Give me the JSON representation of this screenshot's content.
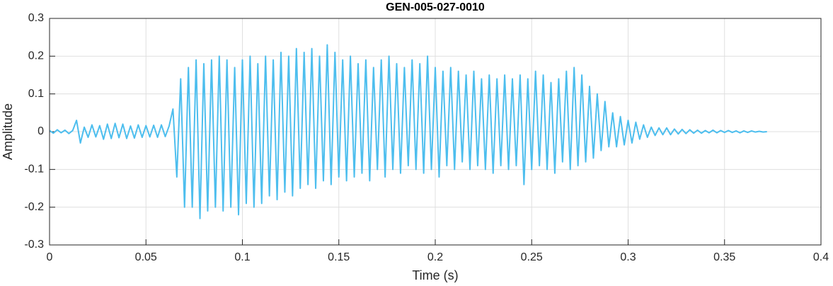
{
  "chart_data": {
    "type": "line",
    "title": "GEN-005-027-0010",
    "x_label": "Time (s)",
    "y_label": "Amplitude",
    "color": "#4dbeee",
    "grid": true,
    "xlim": [
      0,
      0.4
    ],
    "xticks": [
      0,
      0.05,
      0.1,
      0.15,
      0.2,
      0.25,
      0.3,
      0.35,
      0.4
    ],
    "ylim": [
      -0.3,
      0.3
    ],
    "yticks": [
      -0.3,
      -0.2,
      -0.1,
      0,
      0.1,
      0.2,
      0.3
    ],
    "x": [
      0,
      0.002,
      0.004,
      0.006,
      0.008,
      0.01,
      0.012,
      0.014,
      0.016,
      0.018,
      0.02,
      0.022,
      0.024,
      0.026,
      0.028,
      0.03,
      0.032,
      0.034,
      0.036,
      0.038,
      0.04,
      0.042,
      0.044,
      0.046,
      0.048,
      0.05,
      0.052,
      0.054,
      0.056,
      0.058,
      0.06,
      0.062,
      0.064,
      0.066,
      0.068,
      0.07,
      0.072,
      0.074,
      0.076,
      0.078,
      0.08,
      0.082,
      0.084,
      0.086,
      0.088,
      0.09,
      0.092,
      0.094,
      0.096,
      0.098,
      0.1,
      0.102,
      0.104,
      0.106,
      0.108,
      0.11,
      0.112,
      0.114,
      0.116,
      0.118,
      0.12,
      0.122,
      0.124,
      0.126,
      0.128,
      0.13,
      0.132,
      0.134,
      0.136,
      0.138,
      0.14,
      0.142,
      0.144,
      0.146,
      0.148,
      0.15,
      0.152,
      0.154,
      0.156,
      0.158,
      0.16,
      0.162,
      0.164,
      0.166,
      0.168,
      0.17,
      0.172,
      0.174,
      0.176,
      0.178,
      0.18,
      0.182,
      0.184,
      0.186,
      0.188,
      0.19,
      0.192,
      0.194,
      0.196,
      0.198,
      0.2,
      0.202,
      0.204,
      0.206,
      0.208,
      0.21,
      0.212,
      0.214,
      0.216,
      0.218,
      0.22,
      0.222,
      0.224,
      0.226,
      0.228,
      0.23,
      0.232,
      0.234,
      0.236,
      0.238,
      0.24,
      0.242,
      0.244,
      0.246,
      0.248,
      0.25,
      0.252,
      0.254,
      0.256,
      0.258,
      0.26,
      0.262,
      0.264,
      0.266,
      0.268,
      0.27,
      0.272,
      0.274,
      0.276,
      0.278,
      0.28,
      0.282,
      0.284,
      0.286,
      0.288,
      0.29,
      0.292,
      0.294,
      0.296,
      0.298,
      0.3,
      0.302,
      0.304,
      0.306,
      0.308,
      0.31,
      0.312,
      0.314,
      0.316,
      0.318,
      0.32,
      0.322,
      0.324,
      0.326,
      0.328,
      0.33,
      0.332,
      0.334,
      0.336,
      0.338,
      0.34,
      0.342,
      0.344,
      0.346,
      0.348,
      0.35,
      0.352,
      0.354,
      0.356,
      0.358,
      0.36,
      0.362,
      0.364,
      0.366,
      0.368,
      0.37,
      0.372
    ],
    "values": [
      0.003,
      -0.004,
      0.005,
      -0.003,
      0.004,
      -0.005,
      0.003,
      0.03,
      -0.03,
      0.012,
      -0.015,
      0.018,
      -0.014,
      0.016,
      -0.02,
      0.02,
      -0.018,
      0.022,
      -0.016,
      0.02,
      -0.018,
      0.015,
      -0.017,
      0.018,
      -0.015,
      0.016,
      -0.014,
      0.017,
      -0.015,
      0.018,
      -0.013,
      0.015,
      0.06,
      -0.12,
      0.14,
      -0.2,
      0.17,
      -0.2,
      0.19,
      -0.23,
      0.18,
      -0.21,
      0.19,
      -0.2,
      0.2,
      -0.21,
      0.19,
      -0.2,
      0.17,
      -0.22,
      0.19,
      -0.19,
      0.2,
      -0.2,
      0.18,
      -0.19,
      0.2,
      -0.17,
      0.19,
      -0.18,
      0.21,
      -0.16,
      0.2,
      -0.17,
      0.22,
      -0.15,
      0.21,
      -0.14,
      0.22,
      -0.15,
      0.2,
      -0.13,
      0.23,
      -0.14,
      0.21,
      -0.12,
      0.19,
      -0.13,
      0.2,
      -0.12,
      0.18,
      -0.11,
      0.19,
      -0.13,
      0.17,
      -0.1,
      0.19,
      -0.12,
      0.2,
      -0.1,
      0.18,
      -0.11,
      0.17,
      -0.09,
      0.19,
      -0.1,
      0.18,
      -0.11,
      0.2,
      -0.1,
      0.17,
      -0.12,
      0.16,
      -0.09,
      0.17,
      -0.1,
      0.16,
      -0.08,
      0.15,
      -0.1,
      0.16,
      -0.09,
      0.14,
      -0.1,
      0.15,
      -0.11,
      0.14,
      -0.09,
      0.15,
      -0.1,
      0.14,
      -0.09,
      0.15,
      -0.14,
      0.14,
      -0.1,
      0.16,
      -0.09,
      0.15,
      -0.1,
      0.13,
      -0.11,
      0.14,
      -0.08,
      0.16,
      -0.1,
      0.17,
      -0.09,
      0.15,
      -0.08,
      0.12,
      -0.07,
      0.1,
      -0.05,
      0.08,
      -0.04,
      0.05,
      -0.04,
      0.04,
      -0.035,
      0.03,
      -0.03,
      0.025,
      -0.02,
      0.018,
      -0.015,
      0.012,
      -0.01,
      0.01,
      -0.008,
      0.01,
      -0.008,
      0.007,
      -0.006,
      0.006,
      -0.005,
      0.005,
      -0.004,
      0.004,
      -0.004,
      0.003,
      -0.003,
      0.004,
      -0.003,
      0.003,
      -0.002,
      0.003,
      -0.002,
      0.002,
      -0.003,
      0.002,
      -0.002,
      0.002,
      -0.001,
      0.001,
      -0.001,
      0
    ]
  }
}
